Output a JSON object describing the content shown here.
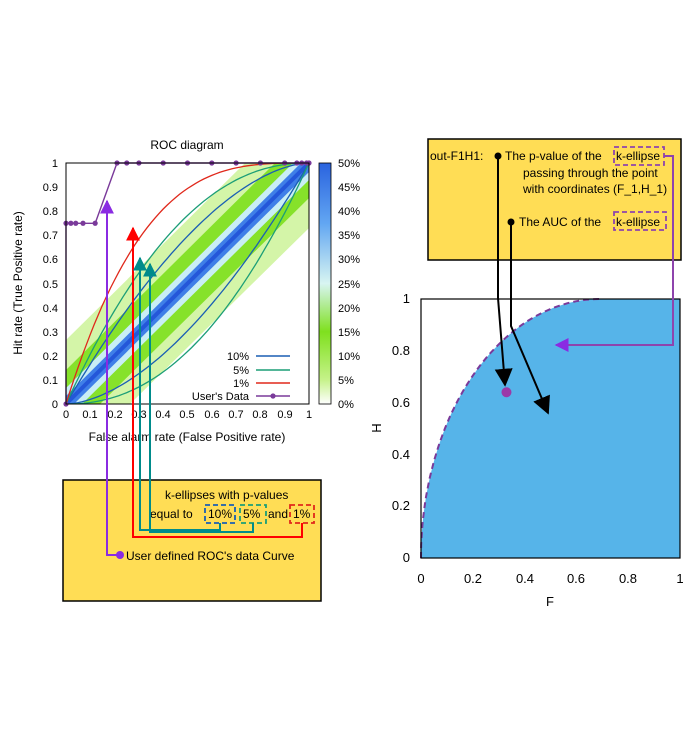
{
  "roc_chart": {
    "title": "ROC diagram",
    "xlabel": "False alarm rate (False Positive rate)",
    "ylabel": "Hit rate (True Positive rate)",
    "x_ticks": [
      "0",
      "0.1",
      "0.2",
      "0.3",
      "0.4",
      "0.5",
      "0.6",
      "0.7",
      "0.8",
      "0.9",
      "1"
    ],
    "y_ticks": [
      "0",
      "0.1",
      "0.2",
      "0.3",
      "0.4",
      "0.5",
      "0.6",
      "0.7",
      "0.8",
      "0.9",
      "1"
    ],
    "colorbar_ticks": [
      "0%",
      "5%",
      "10%",
      "15%",
      "20%",
      "25%",
      "30%",
      "35%",
      "40%",
      "45%",
      "50%"
    ],
    "legend": [
      "10%",
      "5%",
      "1%",
      "User's Data"
    ]
  },
  "ellipse_chart": {
    "xlabel": "F",
    "ylabel": "H",
    "x_ticks": [
      "0",
      "0.2",
      "0.4",
      "0.6",
      "0.8",
      "1"
    ],
    "y_ticks": [
      "0",
      "0.2",
      "0.4",
      "0.6",
      "0.8",
      "1"
    ]
  },
  "left_box": {
    "line1": "k-ellipses with p-values",
    "line2_prefix": "equal to",
    "p10": "10%",
    "p5": "5%",
    "and": "and",
    "p1": "1%",
    "user_curve": "User defined ROC's data Curve"
  },
  "right_box": {
    "label": "out-F1H1:",
    "line1_prefix": "The p-value of the",
    "k_ellipse": "k-ellipse",
    "line2": "passing through the point",
    "line3": "with coordinates (F_1,H_1)",
    "auc_prefix": "The  AUC of the"
  },
  "colors": {
    "c10": "#1a5fb4",
    "c5": "#1c9e77",
    "c1": "#e0281b",
    "user": "#7a3a9a",
    "box": "#ffdd55",
    "fill": "#56b4e9",
    "arrow_purple": "#8a2be2",
    "arrow_red": "#ff0000",
    "arrow_teal": "#008b8b"
  },
  "chart_data": [
    {
      "type": "line",
      "title": "ROC diagram",
      "xlabel": "False alarm rate (False Positive rate)",
      "ylabel": "Hit rate (True Positive rate)",
      "xlim": [
        0,
        1
      ],
      "ylim": [
        0,
        1
      ],
      "series": [
        {
          "name": "10%",
          "ellipse_k": 0.18
        },
        {
          "name": "5%",
          "ellipse_k": 0.3
        },
        {
          "name": "1%",
          "ellipse_k": 0.56
        },
        {
          "name": "User's Data",
          "x": [
            0,
            0,
            0.02,
            0.04,
            0.07,
            0.12,
            0.21,
            0.25,
            0.3,
            0.4,
            0.5,
            0.6,
            0.7,
            0.8,
            0.9,
            0.95,
            0.97,
            0.99,
            1.0
          ],
          "y": [
            0,
            0.75,
            0.75,
            0.75,
            0.75,
            0.75,
            1,
            1,
            1,
            1,
            1,
            1,
            1,
            1,
            1,
            1,
            1,
            1,
            1
          ]
        }
      ],
      "colorbar": {
        "min": 0,
        "max": 50,
        "unit": "%"
      }
    },
    {
      "type": "area",
      "xlabel": "F",
      "ylabel": "H",
      "xlim": [
        0,
        1
      ],
      "ylim": [
        0,
        1
      ],
      "ellipse_k": 0.36,
      "point": {
        "x": 0.33,
        "y": 0.64
      }
    }
  ]
}
